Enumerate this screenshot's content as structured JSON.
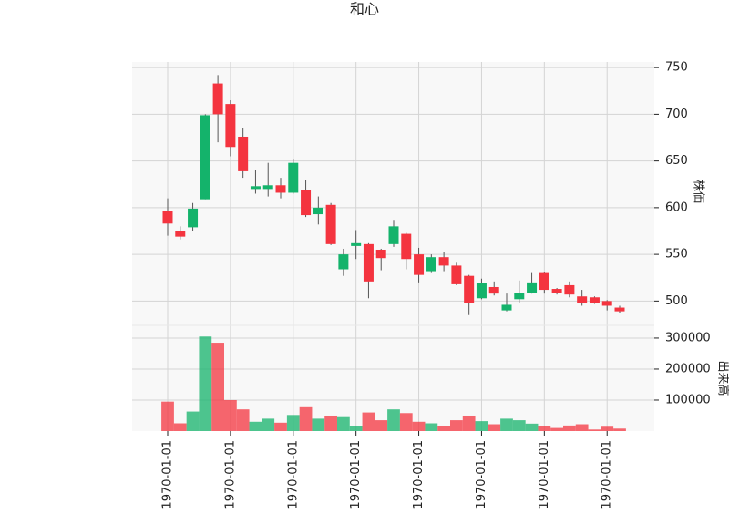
{
  "chart_data": {
    "type": "candlestick",
    "title": "和心",
    "ylabel": "株価",
    "volume_label": "出来高",
    "categories": [
      "1970-01-01",
      null,
      null,
      null,
      null,
      "1970-01-01",
      null,
      null,
      null,
      null,
      "1970-01-01",
      null,
      null,
      null,
      null,
      "1970-01-01",
      null,
      null,
      null,
      null,
      "1970-01-01",
      null,
      null,
      null,
      null,
      "1970-01-01",
      null,
      null,
      null,
      null,
      "1970-01-01",
      null,
      null,
      null,
      null,
      "1970-01-01",
      null
    ],
    "open": [
      596,
      575,
      579,
      609,
      733,
      711,
      676,
      620,
      620,
      624,
      616,
      619,
      593,
      603,
      534,
      559,
      561,
      555,
      561,
      572,
      550,
      532,
      547,
      538,
      527,
      503,
      515,
      490,
      502,
      509,
      530,
      513,
      517,
      505,
      504,
      500,
      493
    ],
    "high": [
      610,
      580,
      605,
      700,
      742,
      715,
      685,
      640,
      648,
      632,
      652,
      630,
      612,
      605,
      556,
      576,
      562,
      556,
      587,
      573,
      557,
      550,
      553,
      541,
      528,
      524,
      521,
      508,
      522,
      530,
      531,
      514,
      521,
      512,
      505,
      501,
      495
    ],
    "low": [
      570,
      566,
      575,
      609,
      670,
      655,
      632,
      615,
      612,
      610,
      615,
      590,
      582,
      560,
      527,
      545,
      503,
      533,
      558,
      534,
      520,
      530,
      532,
      517,
      485,
      502,
      506,
      489,
      498,
      508,
      508,
      507,
      504,
      495,
      497,
      490,
      487
    ],
    "close": [
      583,
      569,
      599,
      699,
      700,
      665,
      639,
      623,
      624,
      616,
      648,
      592,
      600,
      561,
      550,
      562,
      521,
      546,
      580,
      545,
      528,
      547,
      538,
      518,
      498,
      519,
      508,
      496,
      509,
      520,
      512,
      509,
      507,
      498,
      498,
      495,
      489
    ],
    "volume": [
      95000,
      25000,
      63000,
      305000,
      285000,
      100000,
      70000,
      30000,
      40000,
      27000,
      52000,
      77000,
      40000,
      50000,
      45000,
      17000,
      60000,
      35000,
      70000,
      58000,
      30000,
      25000,
      15000,
      35000,
      50000,
      32000,
      22000,
      40000,
      35000,
      24000,
      15000,
      10000,
      18000,
      22000,
      5000,
      14000,
      8000
    ],
    "up_color": "#14b36b",
    "down_color": "#f4343f",
    "ylim": [
      474,
      756
    ],
    "yticks": [
      500,
      550,
      600,
      650,
      700,
      750
    ],
    "volume_ylim": [
      0,
      341000
    ],
    "volume_yticks": [
      100000,
      200000,
      300000
    ],
    "grid": true
  }
}
